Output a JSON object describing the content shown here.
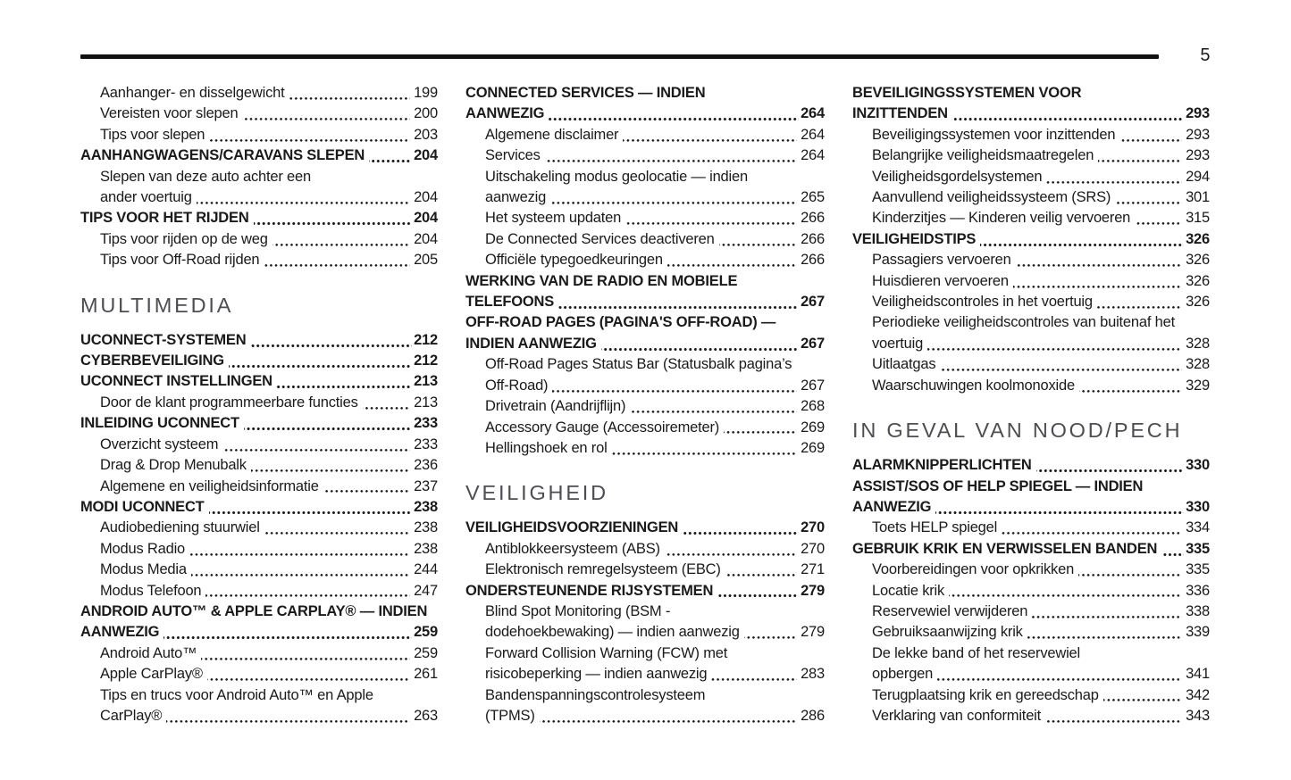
{
  "page": {
    "number": "5"
  },
  "colors": {
    "text": "#1a1a1a",
    "rule": "#111111",
    "section": "#4d4d52"
  },
  "columns": [
    {
      "blocks": [
        {
          "type": "entry",
          "style": "sub",
          "label": "Aanhanger- en disselgewicht",
          "page": "199"
        },
        {
          "type": "entry",
          "style": "sub",
          "label": "Vereisten voor slepen",
          "page": "200"
        },
        {
          "type": "entry",
          "style": "sub",
          "label": "Tips voor slepen",
          "page": "203"
        },
        {
          "type": "entry",
          "style": "bold",
          "label": "AANHANGWAGENS/CARAVANS SLEPEN",
          "page": "204"
        },
        {
          "type": "entry",
          "style": "sub",
          "pre": [
            "Slepen van deze auto achter een"
          ],
          "label": "ander voertuig",
          "page": "204"
        },
        {
          "type": "entry",
          "style": "bold",
          "label": "TIPS VOOR HET RIJDEN",
          "page": "204"
        },
        {
          "type": "entry",
          "style": "sub",
          "label": "Tips voor rijden op de weg",
          "page": "204"
        },
        {
          "type": "entry",
          "style": "sub",
          "label": "Tips voor Off-Road rijden",
          "page": "205"
        },
        {
          "type": "section",
          "title": "MULTIMEDIA"
        },
        {
          "type": "entry",
          "style": "bold",
          "label": "UCONNECT-SYSTEMEN",
          "page": "212"
        },
        {
          "type": "entry",
          "style": "bold",
          "label": "CYBERBEVEILIGING",
          "page": "212"
        },
        {
          "type": "entry",
          "style": "bold",
          "label": "UCONNECT INSTELLINGEN",
          "page": "213"
        },
        {
          "type": "entry",
          "style": "sub",
          "label": "Door de klant programmeerbare functies",
          "page": "213"
        },
        {
          "type": "entry",
          "style": "bold",
          "label": "INLEIDING UCONNECT",
          "page": "233"
        },
        {
          "type": "entry",
          "style": "sub",
          "label": "Overzicht systeem",
          "page": "233"
        },
        {
          "type": "entry",
          "style": "sub",
          "label": "Drag & Drop Menubalk",
          "page": "236"
        },
        {
          "type": "entry",
          "style": "sub",
          "label": "Algemene en veiligheidsinformatie",
          "page": "237"
        },
        {
          "type": "entry",
          "style": "bold",
          "label": "MODI UCONNECT",
          "page": "238"
        },
        {
          "type": "entry",
          "style": "sub",
          "label": "Audiobediening stuurwiel",
          "page": "238"
        },
        {
          "type": "entry",
          "style": "sub",
          "label": "Modus Radio",
          "page": "238"
        },
        {
          "type": "entry",
          "style": "sub",
          "label": "Modus Media",
          "page": "244"
        },
        {
          "type": "entry",
          "style": "sub",
          "label": "Modus Telefoon",
          "page": "247"
        },
        {
          "type": "entry",
          "style": "bold",
          "pre": [
            "ANDROID AUTO™ & APPLE CARPLAY® — INDIEN"
          ],
          "label": "AANWEZIG",
          "page": "259"
        },
        {
          "type": "entry",
          "style": "sub",
          "label": "Android Auto™",
          "page": "259"
        },
        {
          "type": "entry",
          "style": "sub",
          "label": "Apple CarPlay®",
          "page": "261"
        },
        {
          "type": "entry",
          "style": "sub",
          "pre": [
            "Tips en trucs voor Android Auto™ en Apple"
          ],
          "label": "CarPlay®",
          "page": "263"
        }
      ]
    },
    {
      "blocks": [
        {
          "type": "entry",
          "style": "bold",
          "pre": [
            "CONNECTED SERVICES — INDIEN"
          ],
          "label": "AANWEZIG",
          "page": "264"
        },
        {
          "type": "entry",
          "style": "sub",
          "label": "Algemene disclaimer",
          "page": "264"
        },
        {
          "type": "entry",
          "style": "sub",
          "label": "Services",
          "page": "264"
        },
        {
          "type": "entry",
          "style": "sub",
          "pre": [
            "Uitschakeling modus geolocatie — indien"
          ],
          "label": "aanwezig",
          "page": "265"
        },
        {
          "type": "entry",
          "style": "sub",
          "label": "Het systeem updaten",
          "page": "266"
        },
        {
          "type": "entry",
          "style": "sub",
          "label": "De Connected Services deactiveren",
          "page": "266"
        },
        {
          "type": "entry",
          "style": "sub",
          "label": "Officiële typegoedkeuringen",
          "page": "266"
        },
        {
          "type": "entry",
          "style": "bold",
          "pre": [
            "WERKING VAN DE RADIO EN MOBIELE"
          ],
          "label": "TELEFOONS",
          "page": "267"
        },
        {
          "type": "entry",
          "style": "bold",
          "pre": [
            "OFF-ROAD PAGES (PAGINA'S OFF-ROAD) —"
          ],
          "label": "INDIEN AANWEZIG",
          "page": "267"
        },
        {
          "type": "entry",
          "style": "sub",
          "pre": [
            "Off-Road Pages Status Bar (Statusbalk pagina’s"
          ],
          "label": "Off-Road)",
          "page": "267"
        },
        {
          "type": "entry",
          "style": "sub",
          "label": "Drivetrain (Aandrijflijn)",
          "page": "268"
        },
        {
          "type": "entry",
          "style": "sub",
          "label": "Accessory Gauge (Accessoiremeter)",
          "page": "269"
        },
        {
          "type": "entry",
          "style": "sub",
          "label": "Hellingshoek en rol",
          "page": "269"
        },
        {
          "type": "section",
          "title": "VEILIGHEID"
        },
        {
          "type": "entry",
          "style": "bold",
          "label": "VEILIGHEIDSVOORZIENINGEN",
          "page": "270"
        },
        {
          "type": "entry",
          "style": "sub",
          "label": "Antiblokkeersysteem (ABS)",
          "page": "270"
        },
        {
          "type": "entry",
          "style": "sub",
          "label": "Elektronisch remregelsysteem (EBC)",
          "page": "271"
        },
        {
          "type": "entry",
          "style": "bold",
          "label": "ONDERSTEUNENDE RIJSYSTEMEN",
          "page": "279"
        },
        {
          "type": "entry",
          "style": "sub",
          "pre": [
            "Blind Spot Monitoring (BSM -"
          ],
          "label": "dodehoekbewaking) — indien aanwezig",
          "page": "279"
        },
        {
          "type": "entry",
          "style": "sub",
          "pre": [
            "Forward Collision Warning (FCW) met"
          ],
          "label": "risicobeperking — indien aanwezig",
          "page": "283"
        },
        {
          "type": "entry",
          "style": "sub",
          "pre": [
            "Bandenspanningscontrolesysteem"
          ],
          "label": "(TPMS)",
          "page": "286"
        }
      ]
    },
    {
      "blocks": [
        {
          "type": "entry",
          "style": "bold",
          "pre": [
            "BEVEILIGINGSSYSTEMEN VOOR"
          ],
          "label": "INZITTENDEN",
          "page": "293"
        },
        {
          "type": "entry",
          "style": "sub",
          "label": "Beveiligingssystemen voor inzittenden",
          "page": "293"
        },
        {
          "type": "entry",
          "style": "sub",
          "label": "Belangrijke veiligheidsmaatregelen",
          "page": "293"
        },
        {
          "type": "entry",
          "style": "sub",
          "label": "Veiligheidsgordelsystemen",
          "page": "294"
        },
        {
          "type": "entry",
          "style": "sub",
          "label": "Aanvullend veiligheidssysteem (SRS)",
          "page": "301"
        },
        {
          "type": "entry",
          "style": "sub",
          "label": "Kinderzitjes — Kinderen veilig vervoeren",
          "page": "315"
        },
        {
          "type": "entry",
          "style": "bold",
          "label": "VEILIGHEIDSTIPS",
          "page": "326"
        },
        {
          "type": "entry",
          "style": "sub",
          "label": "Passagiers vervoeren",
          "page": "326"
        },
        {
          "type": "entry",
          "style": "sub",
          "label": "Huisdieren vervoeren",
          "page": "326"
        },
        {
          "type": "entry",
          "style": "sub",
          "label": "Veiligheidscontroles in het voertuig",
          "page": "326"
        },
        {
          "type": "entry",
          "style": "sub",
          "pre": [
            "Periodieke veiligheidscontroles van buitenaf het"
          ],
          "label": "voertuig",
          "page": "328"
        },
        {
          "type": "entry",
          "style": "sub",
          "label": "Uitlaatgas",
          "page": "328"
        },
        {
          "type": "entry",
          "style": "sub",
          "label": "Waarschuwingen koolmonoxide",
          "page": "329"
        },
        {
          "type": "section",
          "title": "IN GEVAL VAN NOOD/PECH"
        },
        {
          "type": "entry",
          "style": "bold",
          "label": "ALARMKNIPPERLICHTEN",
          "page": "330"
        },
        {
          "type": "entry",
          "style": "bold",
          "pre": [
            "ASSIST/SOS OF HELP SPIEGEL — INDIEN"
          ],
          "label": "AANWEZIG",
          "page": "330"
        },
        {
          "type": "entry",
          "style": "sub",
          "label": "Toets HELP spiegel",
          "page": "334"
        },
        {
          "type": "entry",
          "style": "bold",
          "label": "GEBRUIK KRIK EN VERWISSELEN BANDEN",
          "page": "335"
        },
        {
          "type": "entry",
          "style": "sub",
          "label": "Voorbereidingen voor opkrikken",
          "page": "335"
        },
        {
          "type": "entry",
          "style": "sub",
          "label": "Locatie krik",
          "page": "336"
        },
        {
          "type": "entry",
          "style": "sub",
          "label": "Reservewiel verwijderen",
          "page": "338"
        },
        {
          "type": "entry",
          "style": "sub",
          "label": "Gebruiksaanwijzing krik",
          "page": "339"
        },
        {
          "type": "entry",
          "style": "sub",
          "pre": [
            "De lekke band of het reservewiel"
          ],
          "label": "opbergen",
          "page": "341"
        },
        {
          "type": "entry",
          "style": "sub",
          "label": "Terugplaatsing krik en gereedschap",
          "page": "342"
        },
        {
          "type": "entry",
          "style": "sub",
          "label": "Verklaring van conformiteit",
          "page": "343"
        }
      ]
    }
  ]
}
